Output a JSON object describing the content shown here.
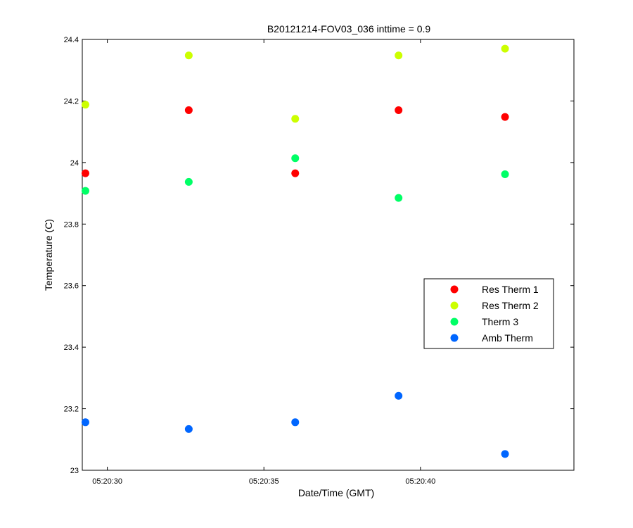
{
  "chart_data": {
    "type": "scatter",
    "title": "B20121214-FOV03_036 inttime = 0.9",
    "xlabel": "Date/Time (GMT)",
    "ylabel": "Temperature (C)",
    "xlim_seconds_after_05_20_00": [
      29.2,
      44.9
    ],
    "ylim": [
      23,
      24.4
    ],
    "grid": false,
    "legend_position": "right",
    "x_ticks": [
      {
        "value": 30,
        "label": "05:20:30"
      },
      {
        "value": 35,
        "label": "05:20:35"
      },
      {
        "value": 40,
        "label": "05:20:40"
      }
    ],
    "y_ticks": [
      {
        "value": 23,
        "label": "23"
      },
      {
        "value": 23.2,
        "label": "23.2"
      },
      {
        "value": 23.4,
        "label": "23.4"
      },
      {
        "value": 23.6,
        "label": "23.6"
      },
      {
        "value": 23.8,
        "label": "23.8"
      },
      {
        "value": 24,
        "label": "24"
      },
      {
        "value": 24.2,
        "label": "24.2"
      },
      {
        "value": 24.4,
        "label": "24.4"
      }
    ],
    "x_times": [
      "05:20:29.3",
      "05:20:32.6",
      "05:20:36.0",
      "05:20:39.3",
      "05:20:42.7"
    ],
    "x_seconds": [
      29.3,
      32.6,
      36.0,
      39.3,
      42.7
    ],
    "series": [
      {
        "name": "Res Therm 1",
        "color": "#ff0000",
        "values": [
          23.965,
          24.17,
          23.965,
          24.17,
          24.148
        ]
      },
      {
        "name": "Res Therm 2",
        "color": "#ccff00",
        "values": [
          24.188,
          24.348,
          24.142,
          24.348,
          24.37
        ]
      },
      {
        "name": "Therm 3",
        "color": "#00ff66",
        "values": [
          23.908,
          23.937,
          24.014,
          23.885,
          23.962
        ]
      },
      {
        "name": "Amb Therm",
        "color": "#0066ff",
        "values": [
          23.156,
          23.134,
          23.156,
          23.242,
          23.053
        ]
      }
    ]
  }
}
